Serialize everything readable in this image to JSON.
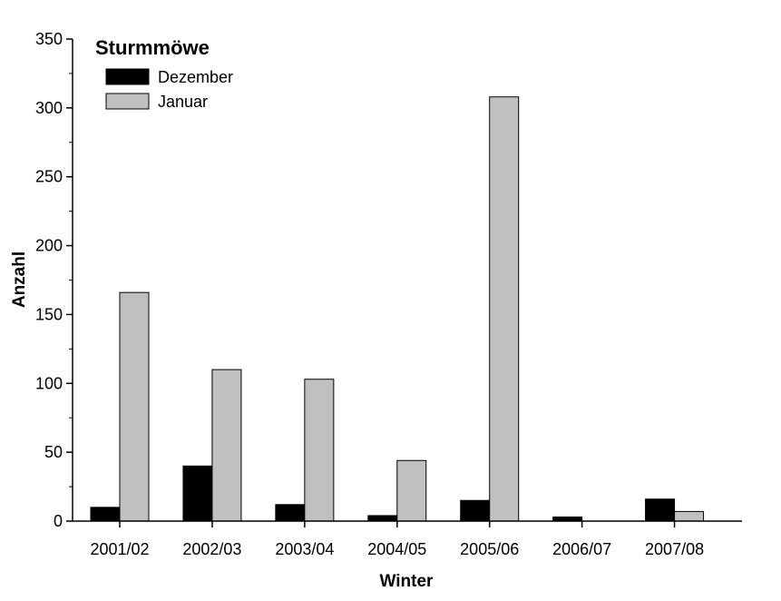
{
  "chart_data": {
    "type": "bar",
    "title": "Sturmmöwe",
    "xlabel": "Winter",
    "ylabel": "Anzahl",
    "ylim": [
      0,
      350
    ],
    "yticks": [
      "0",
      "50",
      "100",
      "150",
      "200",
      "250",
      "300",
      "350"
    ],
    "categories": [
      "2001/02",
      "2002/03",
      "2003/04",
      "2004/05",
      "2005/06",
      "2006/07",
      "2007/08"
    ],
    "series": [
      {
        "name": "Dezember",
        "color": "#000000",
        "values": [
          10,
          40,
          12,
          4,
          15,
          3,
          16
        ]
      },
      {
        "name": "Januar",
        "color": "#c0c0c0",
        "values": [
          166,
          110,
          103,
          44,
          308,
          0,
          7
        ]
      }
    ],
    "legend_position": "top-left",
    "grid": false
  }
}
